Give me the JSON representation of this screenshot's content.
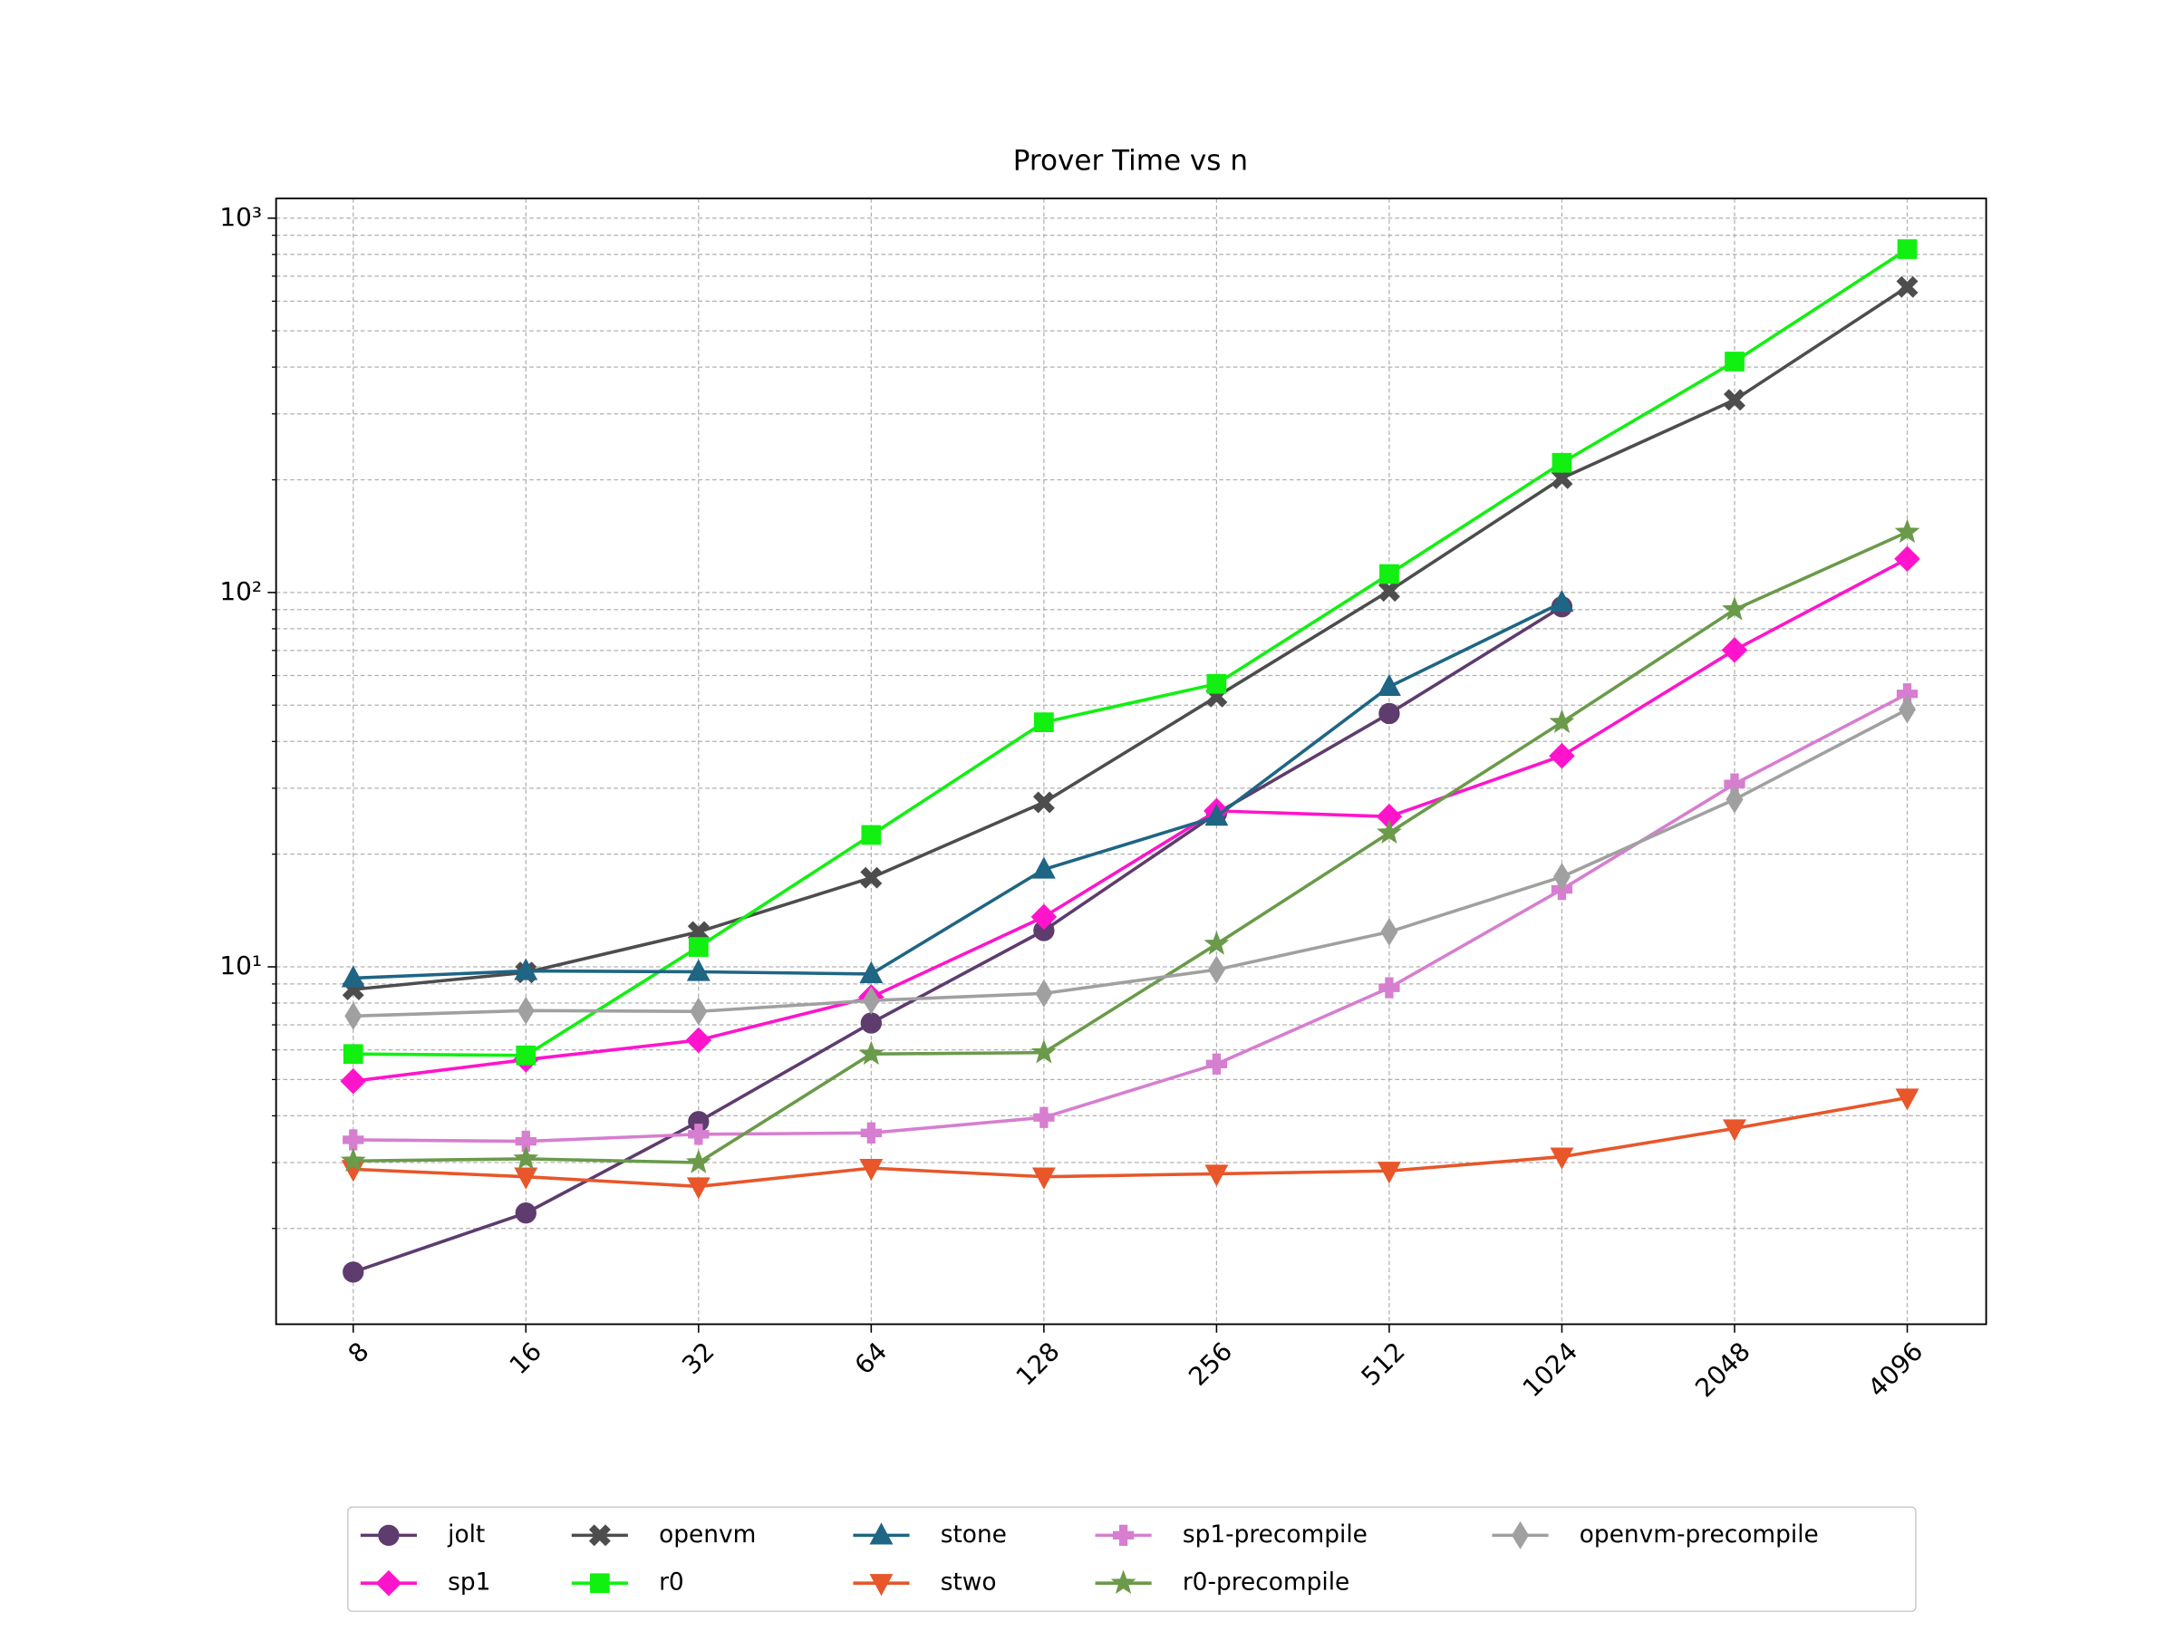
{
  "chart_data": {
    "type": "line",
    "title": "Prover Time vs n",
    "x": [
      8,
      16,
      32,
      64,
      128,
      256,
      512,
      1024,
      2048,
      4096
    ],
    "xlim": [
      5.87,
      5623
    ],
    "xscale": "log2",
    "xticks": [
      8,
      16,
      32,
      64,
      128,
      256,
      512,
      1024,
      2048,
      4096
    ],
    "ylim": [
      1.11,
      1129
    ],
    "yscale": "log",
    "yticks": [
      {
        "value": 10,
        "label": "10¹"
      },
      {
        "value": 100,
        "label": "10²"
      },
      {
        "value": 1000,
        "label": "10³"
      }
    ],
    "yminorticks": [
      2,
      3,
      4,
      5,
      6,
      7,
      8,
      9,
      20,
      30,
      40,
      50,
      60,
      70,
      80,
      90,
      200,
      300,
      400,
      500,
      600,
      700,
      800,
      900
    ],
    "grid": true,
    "legend": "below",
    "series": [
      {
        "name": "jolt",
        "color": "#5e3c6e",
        "marker": "circle",
        "values": [
          1.53,
          2.2,
          3.86,
          7.08,
          12.5,
          25.7,
          47.5,
          91.6,
          null,
          null
        ]
      },
      {
        "name": "sp1",
        "color": "#ff14cc",
        "marker": "diamond",
        "values": [
          4.95,
          5.65,
          6.37,
          8.3,
          13.6,
          26.1,
          25.2,
          36.6,
          70.2,
          123
        ]
      },
      {
        "name": "openvm",
        "color": "#4d4d4d",
        "marker": "x",
        "values": [
          8.7,
          9.66,
          12.4,
          17.3,
          27.5,
          52.7,
          101,
          202,
          327,
          655
        ]
      },
      {
        "name": "r0",
        "color": "#11f011",
        "marker": "square",
        "values": [
          5.85,
          5.8,
          11.3,
          22.5,
          45,
          57,
          112,
          222,
          414,
          826
        ]
      },
      {
        "name": "stone",
        "color": "#1f6584",
        "marker": "triangle-up",
        "values": [
          9.33,
          9.75,
          9.7,
          9.57,
          18.2,
          25.2,
          56,
          94,
          null,
          null
        ]
      },
      {
        "name": "stwo",
        "color": "#e8562a",
        "marker": "triangle-down",
        "values": [
          2.88,
          2.75,
          2.59,
          2.9,
          2.75,
          2.8,
          2.85,
          3.11,
          3.7,
          4.47
        ]
      },
      {
        "name": "sp1-precompile",
        "color": "#d67ed0",
        "marker": "plus",
        "values": [
          3.45,
          3.42,
          3.57,
          3.6,
          3.96,
          5.5,
          8.79,
          16.1,
          30.8,
          53.6
        ]
      },
      {
        "name": "r0-precompile",
        "color": "#6a9a4a",
        "marker": "star",
        "values": [
          3.03,
          3.07,
          3.0,
          5.85,
          5.9,
          11.5,
          22.8,
          45,
          90,
          145
        ]
      },
      {
        "name": "openvm-precompile",
        "color": "#a0a0a0",
        "marker": "thin-diamond",
        "values": [
          7.39,
          7.64,
          7.6,
          8.13,
          8.49,
          9.83,
          12.4,
          17.4,
          28,
          48.7
        ]
      }
    ]
  }
}
